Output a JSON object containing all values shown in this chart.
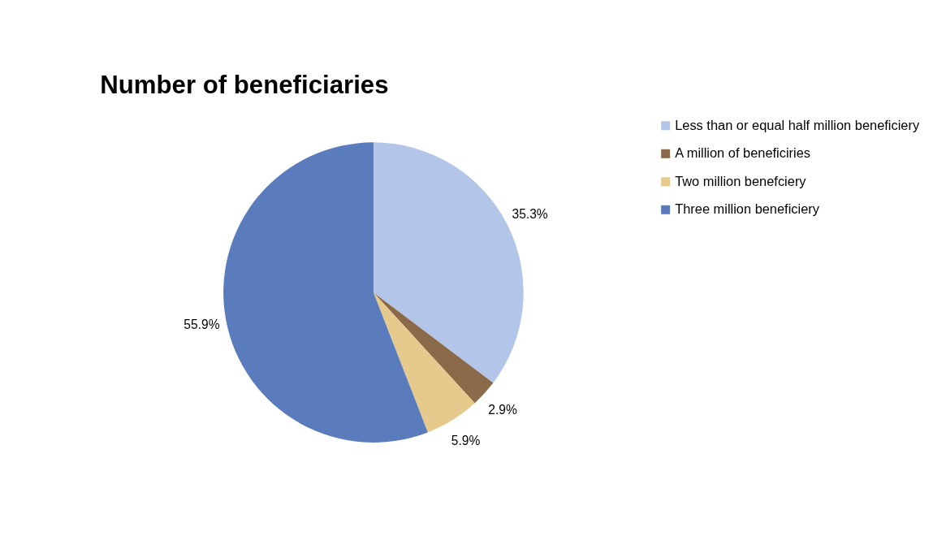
{
  "chart_data": {
    "type": "pie",
    "title": "Number of beneficiaries",
    "categories": [
      "Less than or equal half million beneficiery",
      "A million of beneficiries",
      "Two million benefciery",
      "Three million beneficiery"
    ],
    "values": [
      35.3,
      2.9,
      5.9,
      55.9
    ],
    "colors": [
      "#b3c6ea",
      "#8a6a48",
      "#e6c98c",
      "#5a7cbc"
    ],
    "value_labels": [
      "35.3%",
      "2.9%",
      "5.9%",
      "55.9%"
    ],
    "legend": "right"
  }
}
